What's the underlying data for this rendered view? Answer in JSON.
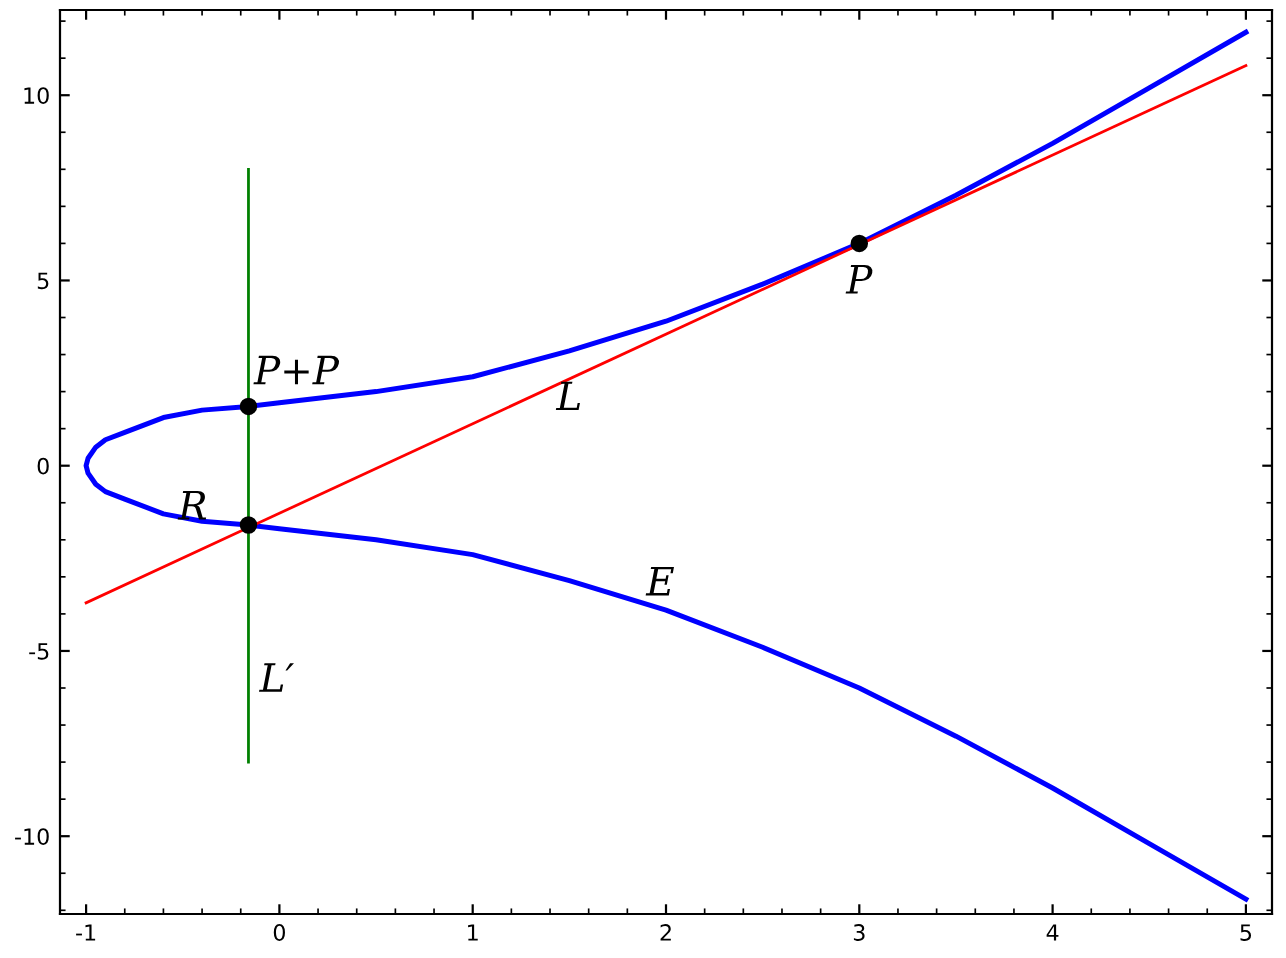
{
  "chart_data": {
    "type": "line",
    "xlim": [
      -1.135,
      5.135
    ],
    "ylim": [
      -12.1,
      12.3
    ],
    "xticks": [
      -1,
      0,
      1,
      2,
      3,
      4,
      5
    ],
    "yticks": [
      -10,
      -5,
      0,
      5,
      10
    ],
    "grid": false,
    "marker": "none",
    "line_style": "solid",
    "series": [
      {
        "color": "#0000ff",
        "x": [
          5,
          4.5,
          4,
          3.5,
          3,
          2.5,
          2,
          1.5,
          1,
          0.5,
          0,
          -0.16,
          -0.4,
          -0.6,
          -0.8,
          -0.9,
          -0.95,
          -0.99,
          -1,
          -0.99,
          -0.95,
          -0.9,
          -0.8,
          -0.6,
          -0.4,
          -0.16,
          0,
          0.5,
          1,
          1.5,
          2,
          2.5,
          3,
          3.5,
          4,
          4.5,
          5
        ],
        "values": [
          -11.7,
          -10.2,
          -8.7,
          -7.3,
          -6,
          -4.9,
          -3.9,
          -3.1,
          -2.4,
          -2,
          -1.7,
          -1.6,
          -1.5,
          -1.3,
          -0.9,
          -0.7,
          -0.5,
          -0.2,
          0,
          0.2,
          0.5,
          0.7,
          0.9,
          1.3,
          1.5,
          1.6,
          1.7,
          2,
          2.4,
          3.1,
          3.9,
          4.9,
          6,
          7.3,
          8.7,
          10.2,
          11.7
        ]
      },
      {
        "color": "#ff0000",
        "x": [
          -1,
          5
        ],
        "values": [
          -3.7,
          10.8
        ]
      },
      {
        "color": "#008000",
        "x": [
          -0.16,
          -0.16
        ],
        "values": [
          -8,
          8
        ]
      },
      {
        "type": "scatter",
        "color": "#000000",
        "marker": "circle",
        "x": [
          3,
          -0.16,
          -0.16
        ],
        "values": [
          6,
          1.6,
          -1.6
        ]
      }
    ],
    "annotations": [
      {
        "text": "P",
        "x": 3,
        "y": 6
      },
      {
        "text": "P+P",
        "x": -0.16,
        "y": 1.6
      },
      {
        "text": "R",
        "x": -0.16,
        "y": -1.6
      },
      {
        "text": "L",
        "x": 1.5,
        "y": 2.4
      },
      {
        "text": "L′",
        "x": -0.16,
        "y": -4
      },
      {
        "text": "E",
        "x": 2,
        "y": -3.8
      }
    ]
  }
}
